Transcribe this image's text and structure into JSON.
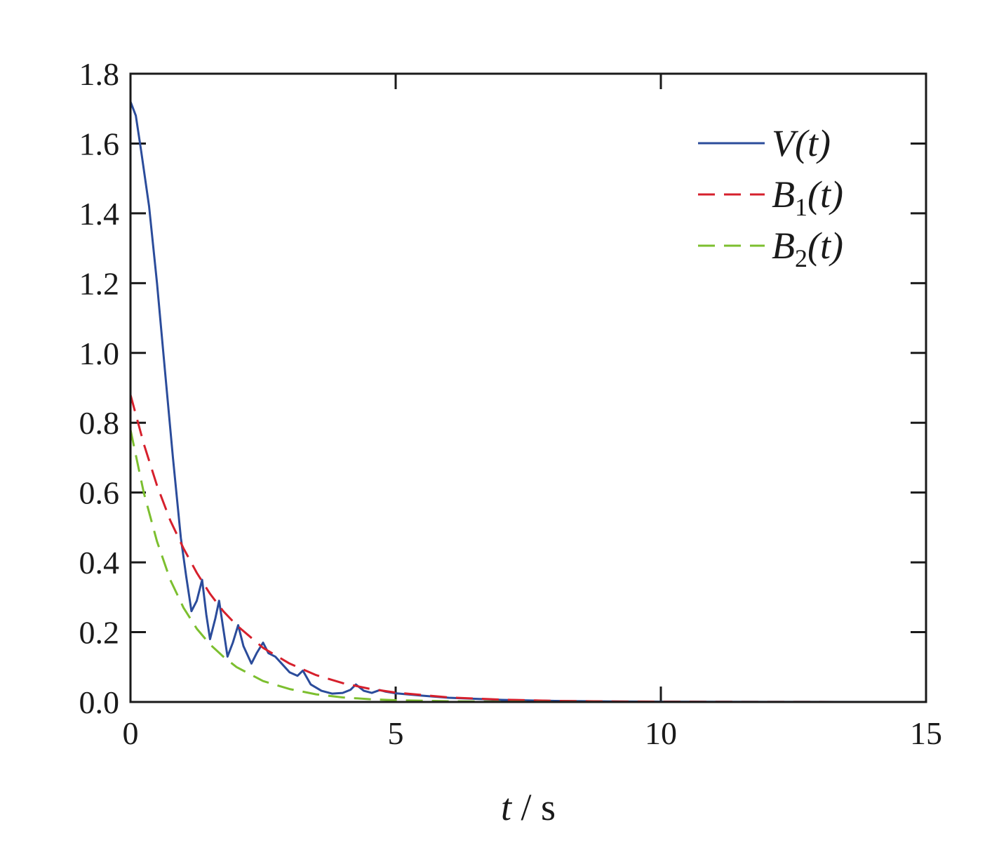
{
  "chart_data": {
    "type": "line",
    "xlabel": {
      "var": "t",
      "sep": " / ",
      "unit": "s"
    },
    "ylabel": "",
    "xlim": [
      0,
      15
    ],
    "ylim": [
      0,
      1.8
    ],
    "x_ticks": [
      0,
      5,
      10,
      15
    ],
    "x_tick_labels": [
      "0",
      "5",
      "10",
      "15"
    ],
    "y_ticks": [
      0,
      0.2,
      0.4,
      0.6,
      0.8,
      1.0,
      1.2,
      1.4,
      1.6,
      1.8
    ],
    "y_tick_labels": [
      "0.0",
      "0.2",
      "0.4",
      "0.6",
      "0.8",
      "1.0",
      "1.2",
      "1.4",
      "1.6",
      "1.8"
    ],
    "grid": false,
    "legend_position": "top-right",
    "series": [
      {
        "name": "V(t)",
        "legend": {
          "main": "V",
          "sub": "",
          "arg": "(t)"
        },
        "color": "#2b4c9b",
        "style": "solid",
        "x": [
          0,
          0.1,
          0.2,
          0.35,
          0.5,
          0.65,
          0.8,
          0.95,
          1.05,
          1.15,
          1.25,
          1.35,
          1.43,
          1.5,
          1.6,
          1.67,
          1.75,
          1.83,
          1.93,
          2.03,
          2.13,
          2.28,
          2.38,
          2.5,
          2.6,
          2.73,
          2.85,
          3.0,
          3.15,
          3.25,
          3.4,
          3.6,
          3.8,
          4.0,
          4.15,
          4.25,
          4.4,
          4.55,
          4.7,
          4.8,
          5.0,
          5.5,
          6.0,
          7.0,
          8.0,
          9.0,
          10.0,
          12.0,
          15.0
        ],
        "y": [
          1.72,
          1.68,
          1.58,
          1.42,
          1.2,
          0.95,
          0.7,
          0.47,
          0.36,
          0.26,
          0.29,
          0.35,
          0.25,
          0.18,
          0.24,
          0.29,
          0.21,
          0.13,
          0.17,
          0.22,
          0.16,
          0.11,
          0.14,
          0.17,
          0.14,
          0.13,
          0.11,
          0.085,
          0.075,
          0.09,
          0.05,
          0.032,
          0.024,
          0.026,
          0.035,
          0.05,
          0.032,
          0.026,
          0.034,
          0.03,
          0.025,
          0.018,
          0.012,
          0.006,
          0.003,
          0.0015,
          0.0008,
          0.0002,
          0.0
        ]
      },
      {
        "name": "B1(t)",
        "legend": {
          "main": "B",
          "sub": "1",
          "arg": "(t)"
        },
        "color": "#d6202c",
        "style": "dashed",
        "x": [
          0,
          0.25,
          0.5,
          0.75,
          1.0,
          1.25,
          1.5,
          1.75,
          2.0,
          2.5,
          3.0,
          3.5,
          4.0,
          4.5,
          5.0,
          6.0,
          7.0,
          8.0,
          9.0,
          10.0,
          12.0,
          15.0
        ],
        "y": [
          0.88,
          0.74,
          0.62,
          0.52,
          0.44,
          0.37,
          0.31,
          0.26,
          0.22,
          0.155,
          0.11,
          0.077,
          0.054,
          0.038,
          0.027,
          0.013,
          0.0066,
          0.0033,
          0.0016,
          0.0008,
          0.0002,
          0.0
        ]
      },
      {
        "name": "B2(t)",
        "legend": {
          "main": "B",
          "sub": "2",
          "arg": "(t)"
        },
        "color": "#7cbf2f",
        "style": "dashed",
        "x": [
          0,
          0.25,
          0.5,
          0.75,
          1.0,
          1.25,
          1.5,
          1.75,
          2.0,
          2.5,
          3.0,
          3.5,
          4.0,
          4.5,
          5.0,
          6.0,
          7.0,
          8.0,
          10.0,
          15.0
        ],
        "y": [
          0.78,
          0.6,
          0.46,
          0.35,
          0.27,
          0.21,
          0.165,
          0.13,
          0.1,
          0.06,
          0.037,
          0.022,
          0.013,
          0.008,
          0.005,
          0.002,
          0.0008,
          0.0003,
          0.0,
          0.0
        ]
      }
    ]
  }
}
